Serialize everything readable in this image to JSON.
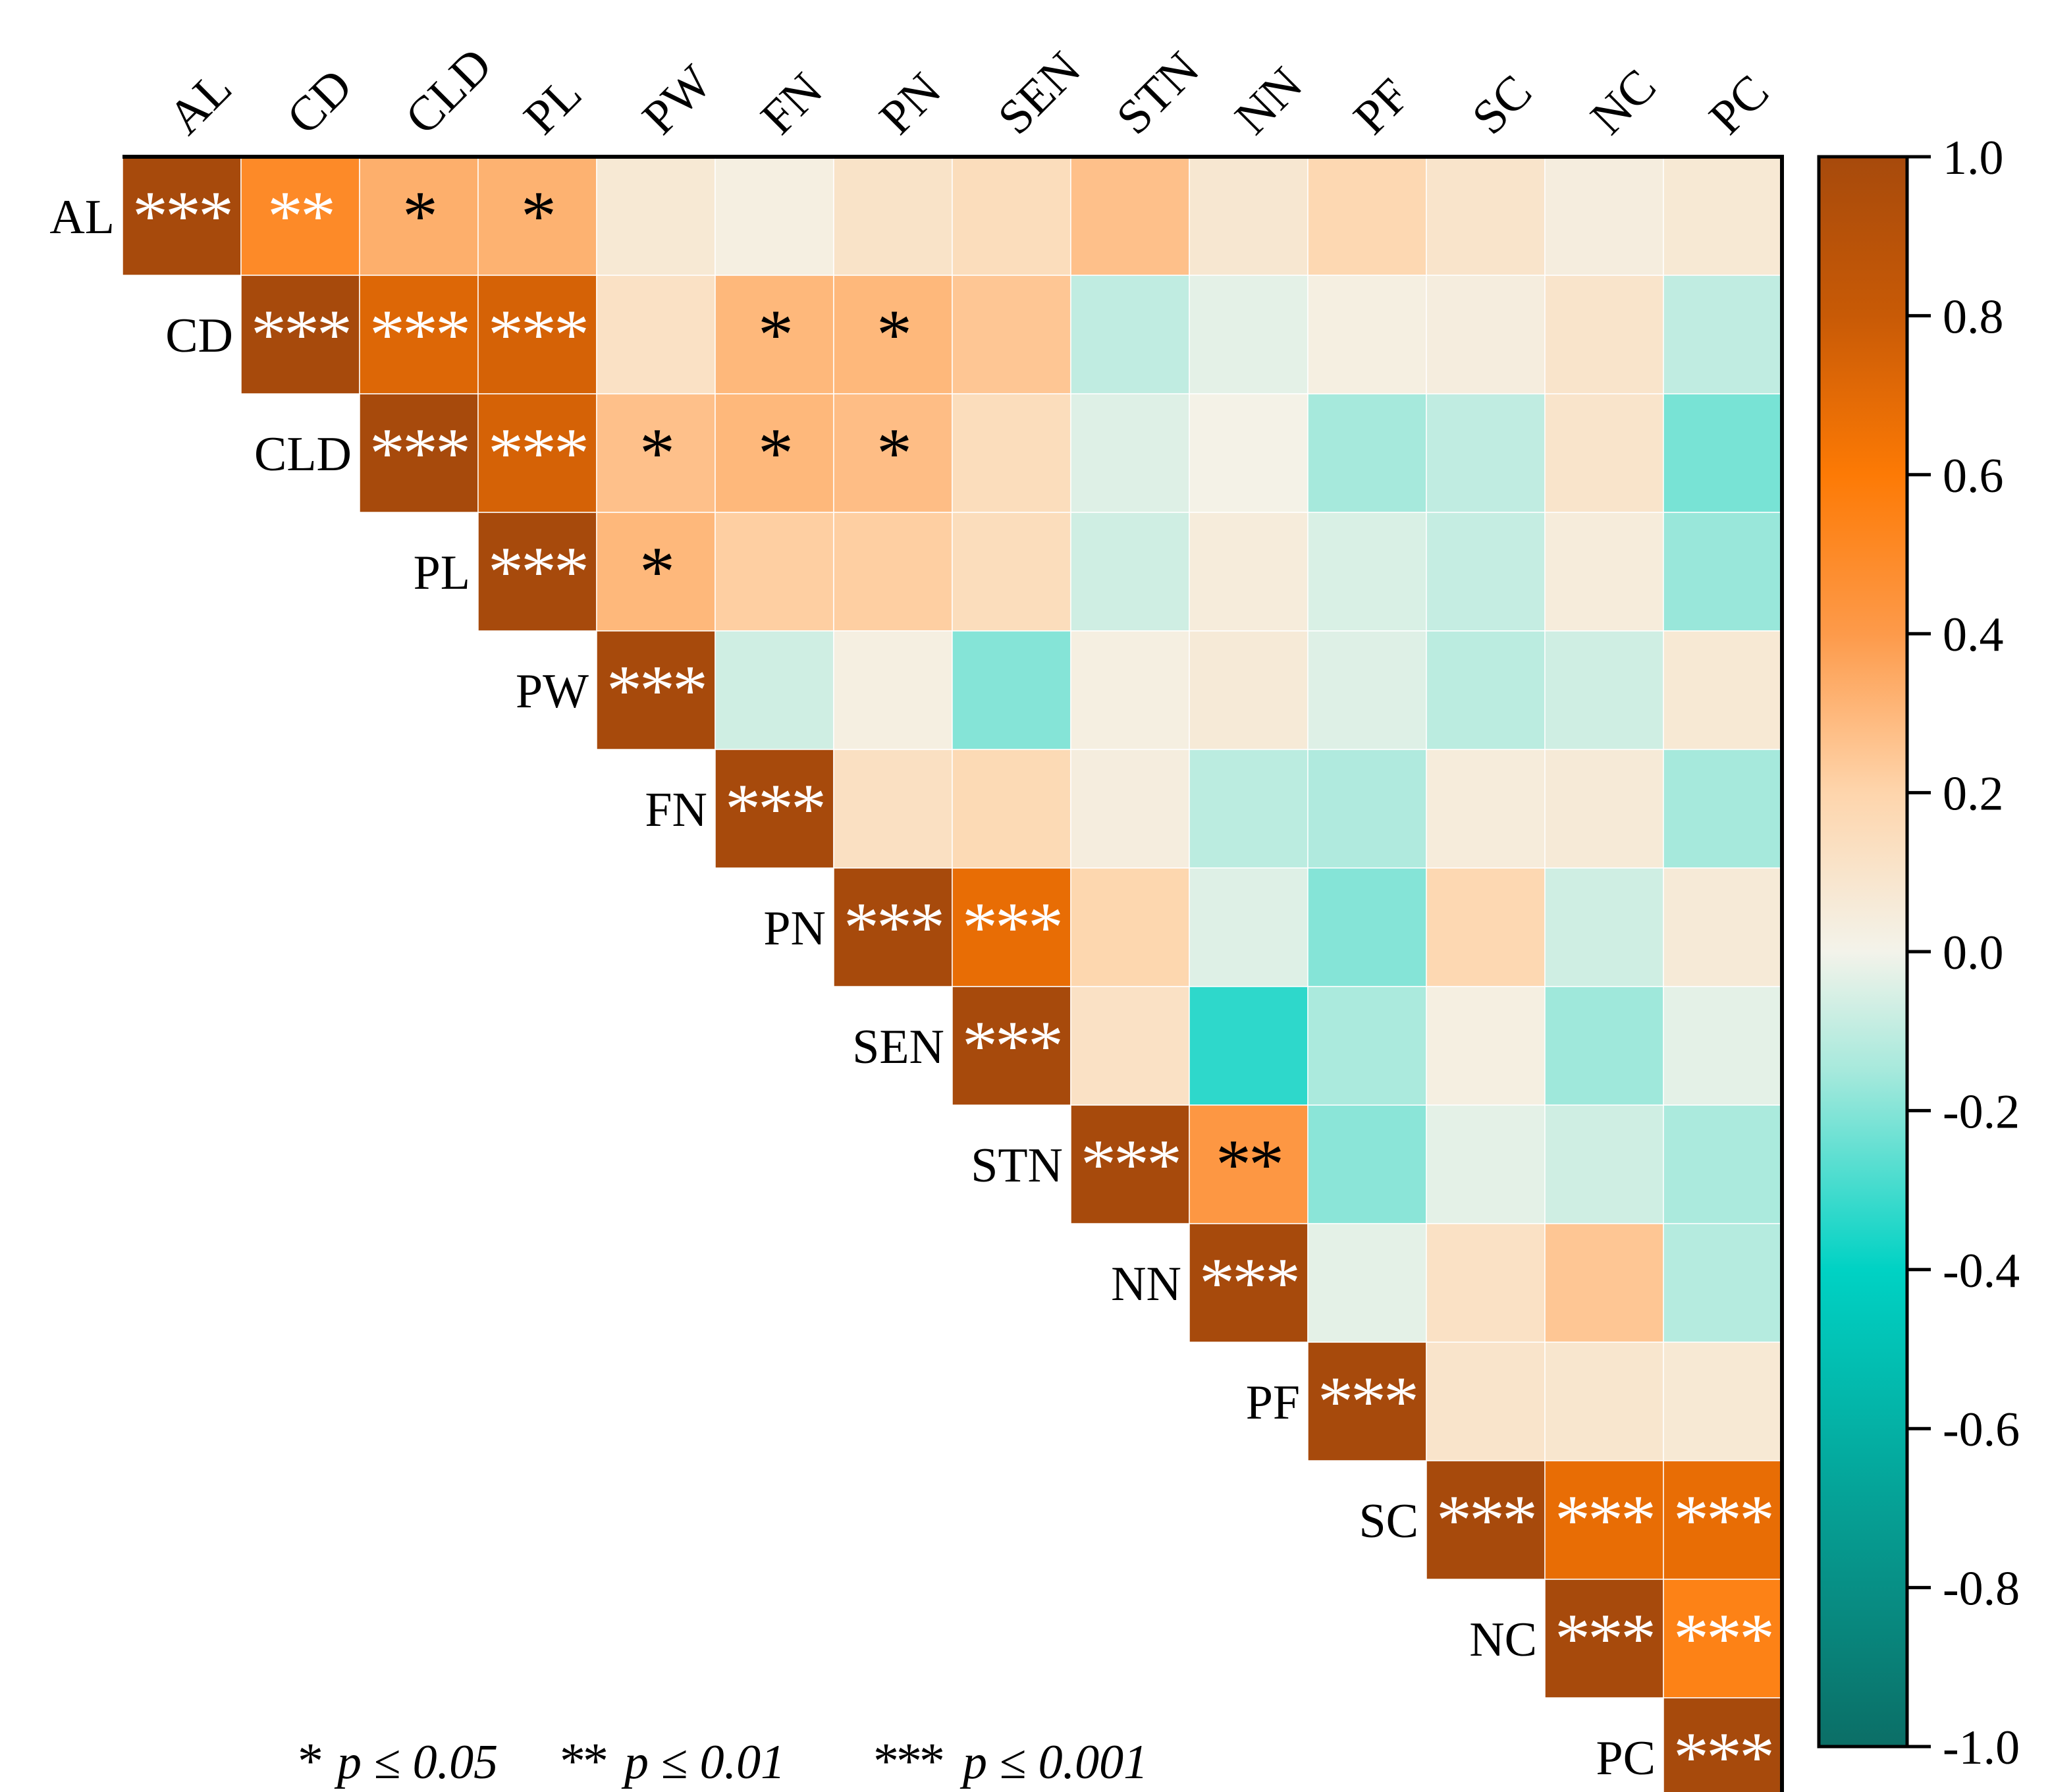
{
  "chart_data": {
    "type": "heatmap",
    "title": "",
    "variables": [
      "AL",
      "CD",
      "CLD",
      "PL",
      "PW",
      "FN",
      "PN",
      "SEN",
      "STN",
      "NN",
      "PF",
      "SC",
      "NC",
      "PC"
    ],
    "matrix": [
      [
        1.0,
        0.5,
        0.33,
        0.32,
        0.07,
        0.03,
        0.11,
        0.15,
        0.27,
        0.08,
        0.18,
        0.1,
        0.04,
        0.07
      ],
      [
        null,
        1.0,
        0.72,
        0.75,
        0.12,
        0.3,
        0.3,
        0.25,
        -0.1,
        -0.03,
        0.03,
        0.04,
        0.1,
        -0.1
      ],
      [
        null,
        null,
        1.0,
        0.75,
        0.27,
        0.3,
        0.28,
        0.15,
        -0.04,
        0.01,
        -0.15,
        -0.1,
        0.1,
        -0.22
      ],
      [
        null,
        null,
        null,
        1.0,
        0.3,
        0.22,
        0.22,
        0.15,
        -0.07,
        0.05,
        -0.05,
        -0.09,
        0.05,
        -0.17
      ],
      [
        null,
        null,
        null,
        null,
        1.0,
        -0.07,
        0.03,
        -0.2,
        0.03,
        0.06,
        -0.04,
        -0.11,
        -0.07,
        0.07
      ],
      [
        null,
        null,
        null,
        null,
        null,
        1.0,
        0.13,
        0.17,
        0.04,
        -0.11,
        -0.13,
        0.05,
        0.06,
        -0.15
      ],
      [
        null,
        null,
        null,
        null,
        null,
        null,
        1.0,
        0.68,
        0.19,
        -0.04,
        -0.2,
        0.18,
        -0.07,
        0.06
      ],
      [
        null,
        null,
        null,
        null,
        null,
        null,
        null,
        1.0,
        0.12,
        -0.33,
        -0.14,
        0.03,
        -0.16,
        -0.03
      ],
      [
        null,
        null,
        null,
        null,
        null,
        null,
        null,
        null,
        1.0,
        0.42,
        -0.19,
        -0.03,
        -0.07,
        -0.14
      ],
      [
        null,
        null,
        null,
        null,
        null,
        null,
        null,
        null,
        null,
        1.0,
        -0.03,
        0.12,
        0.25,
        -0.12
      ],
      [
        null,
        null,
        null,
        null,
        null,
        null,
        null,
        null,
        null,
        null,
        1.0,
        0.1,
        0.09,
        0.07
      ],
      [
        null,
        null,
        null,
        null,
        null,
        null,
        null,
        null,
        null,
        null,
        null,
        1.0,
        0.68,
        0.68
      ],
      [
        null,
        null,
        null,
        null,
        null,
        null,
        null,
        null,
        null,
        null,
        null,
        null,
        1.0,
        0.55
      ],
      [
        null,
        null,
        null,
        null,
        null,
        null,
        null,
        null,
        null,
        null,
        null,
        null,
        null,
        1.0
      ]
    ],
    "significance": [
      [
        "***",
        "**",
        "*",
        "*",
        "",
        "",
        "",
        "",
        "",
        "",
        "",
        "",
        "",
        ""
      ],
      [
        null,
        "***",
        "***",
        "***",
        "",
        "*",
        "*",
        "",
        "",
        "",
        "",
        "",
        "",
        ""
      ],
      [
        null,
        null,
        "***",
        "***",
        "*",
        "*",
        "*",
        "",
        "",
        "",
        "",
        "",
        "",
        ""
      ],
      [
        null,
        null,
        null,
        "***",
        "*",
        "",
        "",
        "",
        "",
        "",
        "",
        "",
        "",
        ""
      ],
      [
        null,
        null,
        null,
        null,
        "***",
        "",
        "",
        "",
        "",
        "",
        "",
        "",
        "",
        ""
      ],
      [
        null,
        null,
        null,
        null,
        null,
        "***",
        "",
        "",
        "",
        "",
        "",
        "",
        "",
        ""
      ],
      [
        null,
        null,
        null,
        null,
        null,
        null,
        "***",
        "***",
        "",
        "",
        "",
        "",
        "",
        ""
      ],
      [
        null,
        null,
        null,
        null,
        null,
        null,
        null,
        "***",
        "",
        "",
        "",
        "",
        "",
        ""
      ],
      [
        null,
        null,
        null,
        null,
        null,
        null,
        null,
        null,
        "***",
        "**",
        "",
        "",
        "",
        ""
      ],
      [
        null,
        null,
        null,
        null,
        null,
        null,
        null,
        null,
        null,
        "***",
        "",
        "",
        "",
        ""
      ],
      [
        null,
        null,
        null,
        null,
        null,
        null,
        null,
        null,
        null,
        null,
        "***",
        "",
        "",
        ""
      ],
      [
        null,
        null,
        null,
        null,
        null,
        null,
        null,
        null,
        null,
        null,
        null,
        "***",
        "***",
        "***"
      ],
      [
        null,
        null,
        null,
        null,
        null,
        null,
        null,
        null,
        null,
        null,
        null,
        null,
        "***",
        "***"
      ],
      [
        null,
        null,
        null,
        null,
        null,
        null,
        null,
        null,
        null,
        null,
        null,
        null,
        null,
        "***"
      ]
    ],
    "colorbar": {
      "range": [
        -1.0,
        1.0
      ],
      "ticks": [
        "1.0",
        "0.8",
        "0.6",
        "0.4",
        "0.2",
        "0.0",
        "-0.2",
        "-0.4",
        "-0.6",
        "-0.8",
        "-1.0"
      ],
      "stops": [
        {
          "value": -1.0,
          "color": "#0b6e66"
        },
        {
          "value": -0.4,
          "color": "#00d2c4"
        },
        {
          "value": -0.15,
          "color": "#a6e9dc"
        },
        {
          "value": 0.0,
          "color": "#f3f3ea"
        },
        {
          "value": 0.2,
          "color": "#fed5ac"
        },
        {
          "value": 0.4,
          "color": "#fd9a4a"
        },
        {
          "value": 0.6,
          "color": "#fd7a05"
        },
        {
          "value": 0.8,
          "color": "#c85a06"
        },
        {
          "value": 1.0,
          "color": "#a74a0c"
        }
      ]
    },
    "legend": {
      "items": [
        {
          "symbol": "*",
          "text": "p ≤ 0.05"
        },
        {
          "symbol": "**",
          "text": "p ≤ 0.01"
        },
        {
          "symbol": "***",
          "text": "p ≤ 0.001"
        }
      ]
    }
  }
}
